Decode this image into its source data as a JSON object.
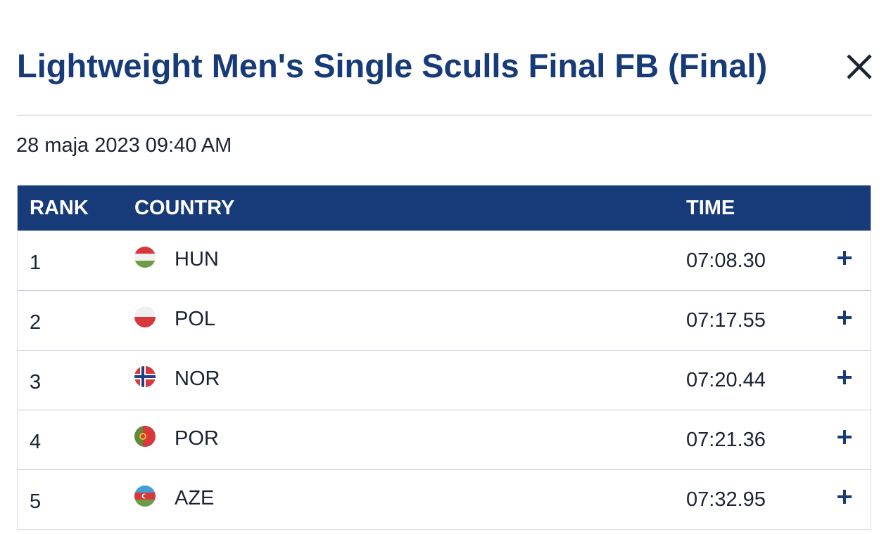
{
  "modal": {
    "title": "Lightweight Men's Single Sculls Final FB (Final)",
    "date": "28 maja 2023 09:40 AM"
  },
  "table": {
    "headers": {
      "rank": "RANK",
      "country": "COUNTRY",
      "time": "TIME"
    },
    "rows": [
      {
        "rank": "1",
        "country": "HUN",
        "flag": "hungary-flag-icon",
        "time": "07:08.30"
      },
      {
        "rank": "2",
        "country": "POL",
        "flag": "poland-flag-icon",
        "time": "07:17.55"
      },
      {
        "rank": "3",
        "country": "NOR",
        "flag": "norway-flag-icon",
        "time": "07:20.44"
      },
      {
        "rank": "4",
        "country": "POR",
        "flag": "portugal-flag-icon",
        "time": "07:21.36"
      },
      {
        "rank": "5",
        "country": "AZE",
        "flag": "azerbaijan-flag-icon",
        "time": "07:32.95"
      }
    ]
  },
  "colors": {
    "accent": "#173a78",
    "divider": "#e6e6e6",
    "row_border": "#c2c9d8"
  },
  "icons": {
    "close": "close-icon",
    "expand": "plus-icon"
  }
}
